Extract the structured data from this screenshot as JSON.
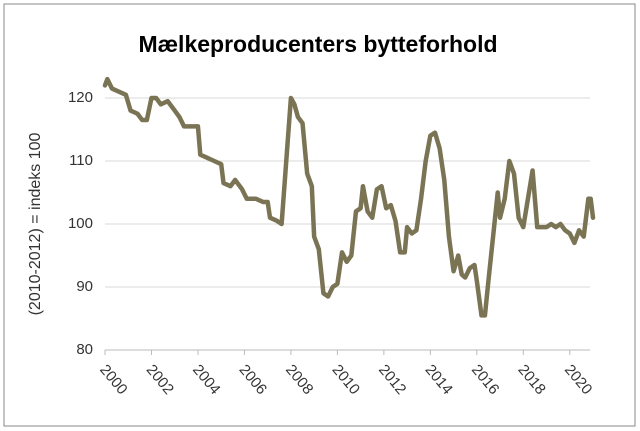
{
  "chart_data": {
    "type": "line",
    "title": "Mælkeproducenters bytteforhold",
    "y_label": "(2010-2012) = indeks 100",
    "x": [
      2000.0,
      2000.1,
      2000.3,
      2000.6,
      2000.9,
      2001.1,
      2001.4,
      2001.6,
      2001.8,
      2002.0,
      2002.2,
      2002.4,
      2002.7,
      2003.0,
      2003.2,
      2003.4,
      2003.7,
      2004.0,
      2004.1,
      2004.4,
      2004.7,
      2005.0,
      2005.1,
      2005.4,
      2005.6,
      2005.9,
      2006.1,
      2006.5,
      2006.8,
      2007.0,
      2007.1,
      2007.4,
      2007.6,
      2007.8,
      2008.0,
      2008.15,
      2008.3,
      2008.5,
      2008.7,
      2008.9,
      2009.0,
      2009.2,
      2009.4,
      2009.6,
      2009.8,
      2010.0,
      2010.2,
      2010.4,
      2010.6,
      2010.8,
      2011.0,
      2011.1,
      2011.3,
      2011.5,
      2011.7,
      2011.9,
      2012.1,
      2012.3,
      2012.5,
      2012.7,
      2012.9,
      2013.0,
      2013.2,
      2013.4,
      2013.6,
      2013.8,
      2014.0,
      2014.2,
      2014.4,
      2014.6,
      2014.8,
      2015.0,
      2015.2,
      2015.35,
      2015.5,
      2015.7,
      2015.9,
      2016.0,
      2016.2,
      2016.35,
      2016.5,
      2016.7,
      2016.9,
      2017.0,
      2017.2,
      2017.4,
      2017.6,
      2017.8,
      2018.0,
      2018.2,
      2018.4,
      2018.6,
      2018.8,
      2019.0,
      2019.2,
      2019.4,
      2019.6,
      2019.8,
      2020.0,
      2020.2,
      2020.4,
      2020.6,
      2020.8,
      2020.9,
      2021.0
    ],
    "series": [
      {
        "color": "#7a7455",
        "values": [
          122,
          123,
          121.5,
          121,
          120.5,
          118,
          117.5,
          116.5,
          116.5,
          120,
          120,
          119,
          119.5,
          118,
          117,
          115.5,
          115.5,
          115.5,
          111,
          110.5,
          110,
          109.5,
          106.5,
          106,
          107,
          105.5,
          104,
          104,
          103.5,
          103.5,
          101,
          100.5,
          100,
          110,
          120,
          119,
          117,
          116,
          108,
          106,
          98,
          96,
          89,
          88.5,
          90,
          90.5,
          95.5,
          94,
          95,
          102,
          102.5,
          106,
          102,
          101,
          105.5,
          106,
          102.5,
          103,
          100.5,
          95.5,
          95.5,
          99.5,
          98.5,
          99,
          104,
          110,
          114,
          114.5,
          112,
          107,
          98,
          92.5,
          95,
          92,
          91.5,
          93,
          93.5,
          91,
          85.5,
          85.5,
          91,
          98,
          105,
          101,
          104,
          110,
          108,
          101,
          99.5,
          104,
          108.5,
          99.5,
          99.5,
          99.5,
          100,
          99.5,
          100,
          99,
          98.5,
          97,
          99,
          98,
          104,
          104,
          101
        ]
      }
    ],
    "xlim": [
      2000,
      2021
    ],
    "xticks": [
      2000,
      2002,
      2004,
      2006,
      2008,
      2010,
      2012,
      2014,
      2016,
      2018,
      2020
    ],
    "ylim": [
      80,
      125
    ],
    "yticks": [
      80,
      90,
      100,
      110,
      120
    ],
    "grid": true
  }
}
